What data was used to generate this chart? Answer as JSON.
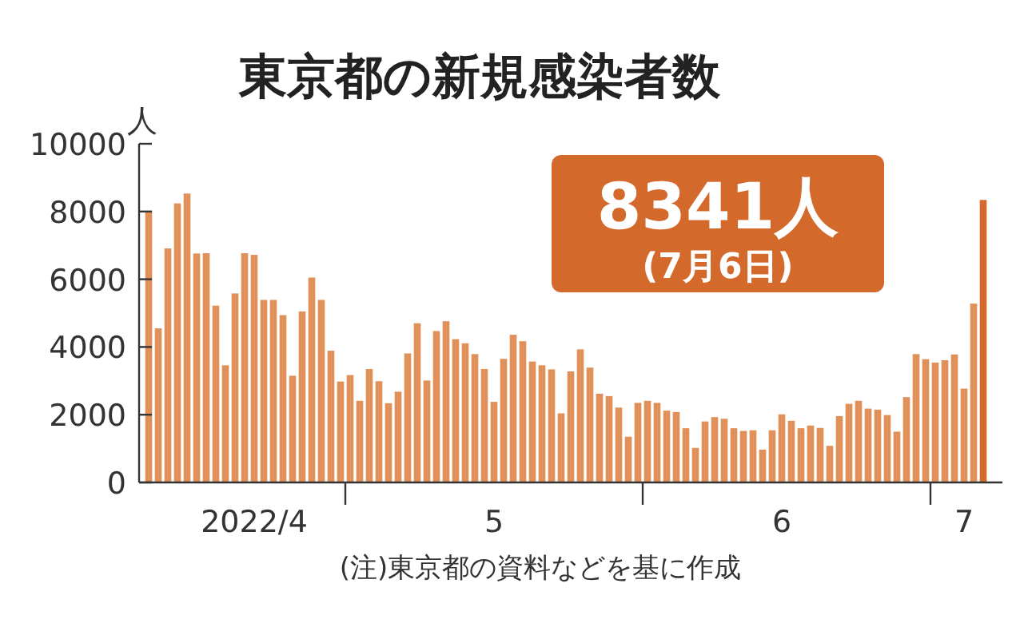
{
  "chart_data": {
    "type": "bar",
    "title": "東京都の新規感染者数",
    "ylabel": "人",
    "annotations": [
      "8341人",
      "(7月6日)",
      "(注)東京都の資料などを基に作成"
    ],
    "x": [
      "2022-04-10",
      "2022-04-11",
      "2022-04-12",
      "2022-04-13",
      "2022-04-14",
      "2022-04-15",
      "2022-04-16",
      "2022-04-17",
      "2022-04-18",
      "2022-04-19",
      "2022-04-20",
      "2022-04-21",
      "2022-04-22",
      "2022-04-23",
      "2022-04-24",
      "2022-04-25",
      "2022-04-26",
      "2022-04-27",
      "2022-04-28",
      "2022-04-29",
      "2022-04-30",
      "2022-05-01",
      "2022-05-02",
      "2022-05-03",
      "2022-05-04",
      "2022-05-05",
      "2022-05-06",
      "2022-05-07",
      "2022-05-08",
      "2022-05-09",
      "2022-05-10",
      "2022-05-11",
      "2022-05-12",
      "2022-05-13",
      "2022-05-14",
      "2022-05-15",
      "2022-05-16",
      "2022-05-17",
      "2022-05-18",
      "2022-05-19",
      "2022-05-20",
      "2022-05-21",
      "2022-05-22",
      "2022-05-23",
      "2022-05-24",
      "2022-05-25",
      "2022-05-26",
      "2022-05-27",
      "2022-05-28",
      "2022-05-29",
      "2022-05-30",
      "2022-05-31",
      "2022-06-01",
      "2022-06-02",
      "2022-06-03",
      "2022-06-04",
      "2022-06-05",
      "2022-06-06",
      "2022-06-07",
      "2022-06-08",
      "2022-06-09",
      "2022-06-10",
      "2022-06-11",
      "2022-06-12",
      "2022-06-13",
      "2022-06-14",
      "2022-06-15",
      "2022-06-16",
      "2022-06-17",
      "2022-06-18",
      "2022-06-19",
      "2022-06-20",
      "2022-06-21",
      "2022-06-22",
      "2022-06-23",
      "2022-06-24",
      "2022-06-25",
      "2022-06-26",
      "2022-06-27",
      "2022-06-28",
      "2022-06-29",
      "2022-06-30",
      "2022-07-01",
      "2022-07-02",
      "2022-07-03",
      "2022-07-04",
      "2022-07-05",
      "2022-07-06"
    ],
    "values": [
      8020,
      4550,
      6910,
      8240,
      8530,
      6760,
      6770,
      5220,
      3460,
      5580,
      6770,
      6720,
      5390,
      5390,
      4940,
      3150,
      5050,
      6050,
      5390,
      3890,
      2980,
      3170,
      2410,
      3350,
      2990,
      2340,
      2680,
      3810,
      4700,
      3010,
      4470,
      4760,
      4230,
      4110,
      3790,
      3350,
      2380,
      3650,
      4360,
      4170,
      3570,
      3460,
      3340,
      2040,
      3280,
      3930,
      3390,
      2620,
      2550,
      2210,
      1350,
      2350,
      2410,
      2350,
      2120,
      2080,
      1600,
      1020,
      1800,
      1930,
      1880,
      1600,
      1520,
      1540,
      970,
      1540,
      2010,
      1820,
      1600,
      1680,
      1610,
      1080,
      1960,
      2320,
      2410,
      2180,
      2150,
      1990,
      1500,
      2520,
      3790,
      3640,
      3540,
      3610,
      3780,
      2770,
      5280,
      8341
    ],
    "colors": [
      "#e0915a",
      "#e0915a",
      "#e0915a",
      "#e0915a",
      "#e0915a",
      "#e0915a",
      "#e0915a",
      "#e0915a",
      "#e0915a",
      "#e0915a",
      "#e0915a",
      "#e0915a",
      "#e0915a",
      "#e0915a",
      "#e0915a",
      "#e0915a",
      "#e0915a",
      "#e0915a",
      "#e0915a",
      "#e0915a",
      "#e0915a",
      "#e0915a",
      "#e0915a",
      "#e0915a",
      "#e0915a",
      "#e0915a",
      "#e0915a",
      "#e0915a",
      "#e0915a",
      "#e0915a",
      "#e0915a",
      "#e0915a",
      "#e0915a",
      "#e0915a",
      "#e0915a",
      "#e0915a",
      "#e0915a",
      "#e0915a",
      "#e0915a",
      "#e0915a",
      "#e0915a",
      "#e0915a",
      "#e0915a",
      "#e0915a",
      "#e0915a",
      "#e0915a",
      "#e0915a",
      "#e0915a",
      "#e0915a",
      "#e0915a",
      "#e0915a",
      "#e0915a",
      "#e0915a",
      "#e0915a",
      "#e0915a",
      "#e0915a",
      "#e0915a",
      "#e0915a",
      "#e0915a",
      "#e0915a",
      "#e0915a",
      "#e0915a",
      "#e0915a",
      "#e0915a",
      "#e0915a",
      "#e0915a",
      "#e0915a",
      "#e0915a",
      "#e0915a",
      "#e0915a",
      "#e0915a",
      "#e0915a",
      "#e0915a",
      "#e0915a",
      "#e0915a",
      "#e0915a",
      "#e0915a",
      "#e0915a",
      "#e0915a",
      "#e0915a",
      "#e0915a",
      "#e0915a",
      "#e0915a",
      "#e0915a",
      "#e0915a",
      "#e0915a",
      "#e0915a",
      "#d4692c"
    ],
    "xlim": [
      "2022-04-09",
      "2022-07-08"
    ],
    "xticks": [
      {
        "value": "2022-04-21",
        "label": "2022/4"
      },
      {
        "value": "2022-04-30T12:00",
        "label": null
      },
      {
        "value": "2022-05-16",
        "label": "5"
      },
      {
        "value": "2022-05-31T12:00",
        "label": null
      },
      {
        "value": "2022-06-15",
        "label": "6"
      },
      {
        "value": "2022-06-30T12:00",
        "label": null
      },
      {
        "value": "2022-07-04",
        "label": "7"
      }
    ],
    "ylim": [
      0,
      10000
    ],
    "yticks": [
      0,
      2000,
      4000,
      6000,
      8000,
      10000
    ],
    "grid": false
  }
}
